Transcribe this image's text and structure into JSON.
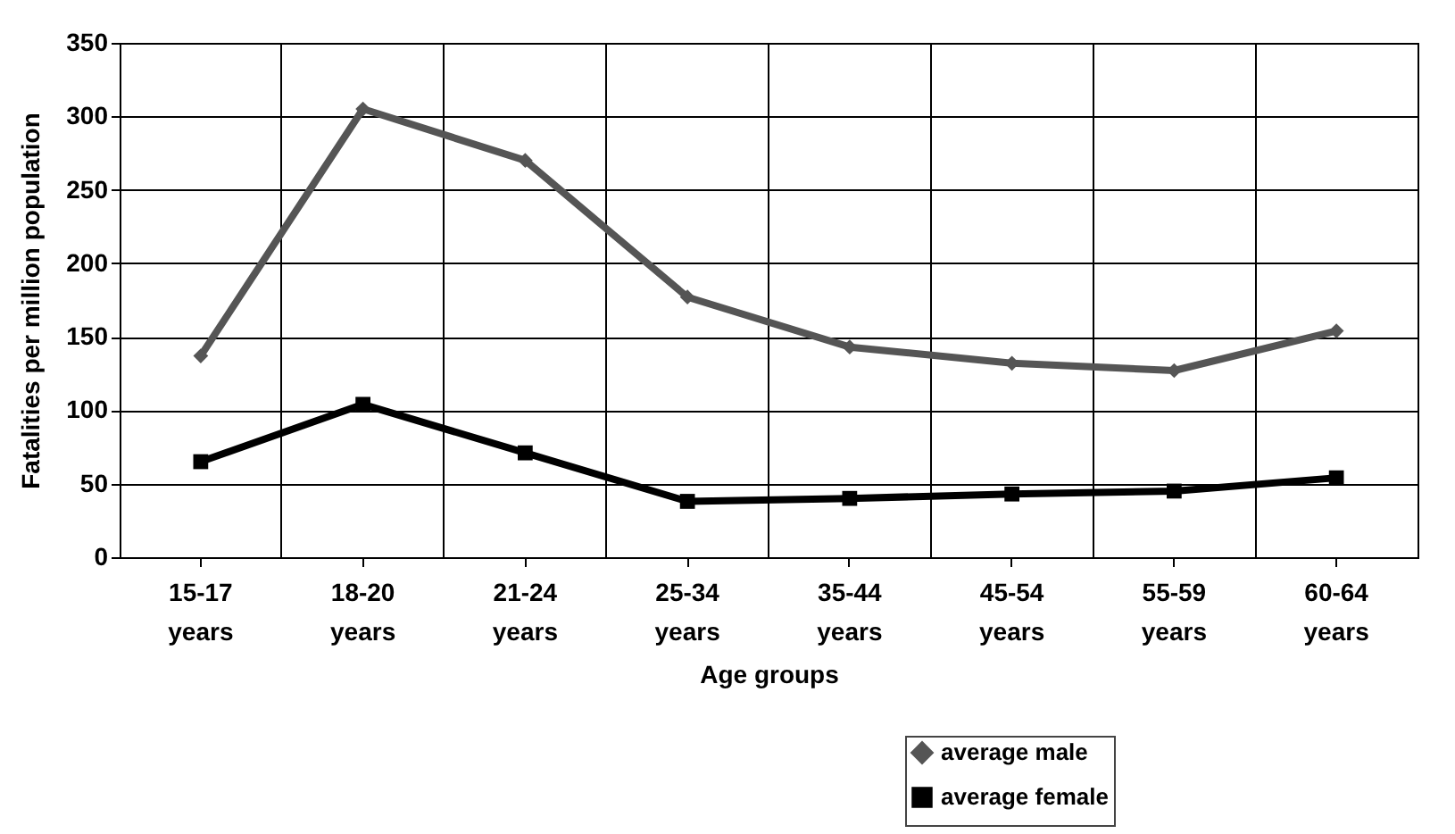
{
  "chart_data": {
    "type": "line",
    "xlabel": "Age groups",
    "ylabel": "Fatalities per million population",
    "categories": [
      "15-17 years",
      "18-20 years",
      "21-24 years",
      "25-34 years",
      "35-44 years",
      "45-54 years",
      "55-59 years",
      "60-64 years"
    ],
    "series": [
      {
        "name": "average male",
        "color": "#555555",
        "marker": "diamond",
        "values": [
          137,
          305,
          270,
          177,
          143,
          132,
          127,
          154
        ]
      },
      {
        "name": "average female",
        "color": "#000000",
        "marker": "square",
        "values": [
          65,
          104,
          71,
          38,
          40,
          43,
          45,
          54
        ]
      }
    ],
    "ylim": [
      0,
      350
    ],
    "yticks": [
      0,
      50,
      100,
      150,
      200,
      250,
      300,
      350
    ],
    "grid": true,
    "legend": "bottom right",
    "line_style": "solid"
  }
}
